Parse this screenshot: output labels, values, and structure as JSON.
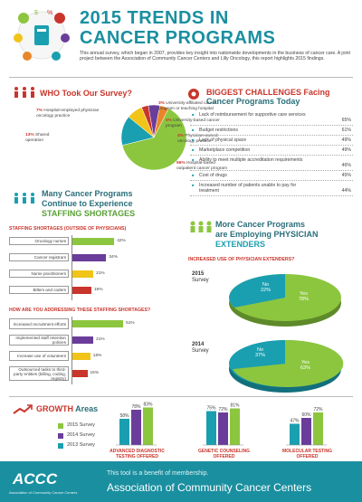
{
  "header": {
    "title_line1": "2015 TRENDS IN",
    "title_line2": "CANCER PROGRAMS",
    "intro": "This annual survey, which began in 2007, provides key insight into nationwide developments in the business of cancer care. A joint project between the Association of Community Cancer Centers and Lilly Oncology, this report highlights 2015 findings."
  },
  "survey": {
    "title": "WHO Took Our Survey?",
    "slices": [
      {
        "pct": "56%",
        "label": "Hospital-based outpatient cancer program",
        "value": 56,
        "color": "#8cc63f"
      },
      {
        "pct": "13%",
        "label": "Shared operation",
        "value": 13,
        "color": "#1a9fb0"
      },
      {
        "pct": "7%",
        "label": "Hospital-employed physician oncology practice",
        "value": 7,
        "color": "#f0c419"
      },
      {
        "pct": "3%",
        "label": "University-affiliated cancer program or teaching hospital",
        "value": 3,
        "color": "#c9352b"
      },
      {
        "pct": "5%",
        "label": "University-based cancer program",
        "value": 5,
        "color": "#6a3d9a"
      },
      {
        "pct": "4%",
        "label": "Physician-owned oncology practice",
        "value": 4,
        "color": "#e8862a"
      }
    ]
  },
  "challenges": {
    "title_line1": "BIGGEST CHALLENGES Facing",
    "title_line2": "Cancer Programs Today",
    "items": [
      {
        "label": "Lack of reimbursement for supportive care services",
        "pct": "65%"
      },
      {
        "label": "Budget restrictions",
        "pct": "61%"
      },
      {
        "label": "Lack of physical space",
        "pct": "49%"
      },
      {
        "label": "Marketplace competition",
        "pct": "49%"
      },
      {
        "label": "Ability to meet multiple accreditation requirements",
        "pct": "46%"
      },
      {
        "label": "Cost of drugs",
        "pct": "45%"
      },
      {
        "label": "Increased number of patients unable to pay for treatment",
        "pct": "44%"
      }
    ]
  },
  "staffing": {
    "title_line1": "Many Cancer Programs",
    "title_line2": "Continue to Experience",
    "title_line3": "STAFFING SHORTAGES",
    "sub1": "STAFFING SHORTAGES (OUTSIDE OF PHYSICIANS)",
    "shortages": [
      {
        "label": "Oncology nurses",
        "pct": "42%",
        "value": 42,
        "color": "#8cc63f"
      },
      {
        "label": "Cancer registrars",
        "pct": "34%",
        "value": 34,
        "color": "#6a3d9a"
      },
      {
        "label": "Nurse practitioners",
        "pct": "21%",
        "value": 21,
        "color": "#f0c419"
      },
      {
        "label": "Billers and coders",
        "pct": "19%",
        "value": 19,
        "color": "#c9352b"
      }
    ],
    "sub2": "HOW ARE YOU ADDRESSING THESE STAFFING SHORTAGES?",
    "addressing": [
      {
        "label": "Increased recruitment efforts",
        "pct": "51%",
        "value": 51,
        "color": "#8cc63f"
      },
      {
        "label": "Implemented staff retention policies",
        "pct": "21%",
        "value": 21,
        "color": "#6a3d9a"
      },
      {
        "label": "Increase use of volunteers",
        "pct": "18%",
        "value": 18,
        "color": "#f0c419"
      },
      {
        "label": "Outsourced tasks to third-party entities (billing, coding, registry)",
        "pct": "15%",
        "value": 15,
        "color": "#c9352b"
      }
    ]
  },
  "extenders": {
    "title_line1": "More Cancer Programs",
    "title_line2": "are Employing PHYSICIAN",
    "title_line3": "EXTENDERS",
    "sub": "INCREASED USE OF PHYSICIAN EXTENDERS?",
    "y2015": "2015",
    "y2014": "2014",
    "survey_word": "Survey",
    "p2015": {
      "no": "No",
      "no_pct": "22%",
      "yes": "Yes",
      "yes_pct": "78%"
    },
    "p2014": {
      "no": "No",
      "no_pct": "37%",
      "yes": "Yes",
      "yes_pct": "63%"
    }
  },
  "growth": {
    "title_a": "GROWTH",
    "title_b": "Areas",
    "legend": [
      {
        "label": "2015 Survey",
        "color": "#8cc63f"
      },
      {
        "label": "2014 Survey",
        "color": "#6a3d9a"
      },
      {
        "label": "2013 Survey",
        "color": "#1a9fb0"
      }
    ]
  },
  "chart_data": {
    "type": "bar",
    "categories": [
      "ADVANCED DIAGNOSTIC TESTING OFFERED",
      "GENETIC COUNSELING OFFERED",
      "MOLECULAR TESTING OFFERED"
    ],
    "series": [
      {
        "name": "2013 Survey",
        "values": [
          58,
          75,
          47
        ]
      },
      {
        "name": "2014 Survey",
        "values": [
          78,
          72,
          60
        ]
      },
      {
        "name": "2015 Survey",
        "values": [
          83,
          81,
          72
        ]
      }
    ],
    "labels": [
      [
        "58%",
        "78%",
        "83%"
      ],
      [
        "75%",
        "72%",
        "81%"
      ],
      [
        "47%",
        "60%",
        "72%"
      ]
    ],
    "colors": [
      "#1a9fb0",
      "#6a3d9a",
      "#8cc63f"
    ],
    "cat_lines": [
      [
        "ADVANCED DIAGNOSTIC",
        "TESTING OFFERED"
      ],
      [
        "GENETIC COUNSELING",
        "OFFERED"
      ],
      [
        "MOLECULAR TESTING",
        "OFFERED"
      ]
    ]
  },
  "footer": {
    "logo": "ACCC",
    "logo_sub": "Association of Community Cancer Centers",
    "line1": "This tool is a benefit of membership.",
    "line2": "Association of Community Cancer Centers"
  }
}
